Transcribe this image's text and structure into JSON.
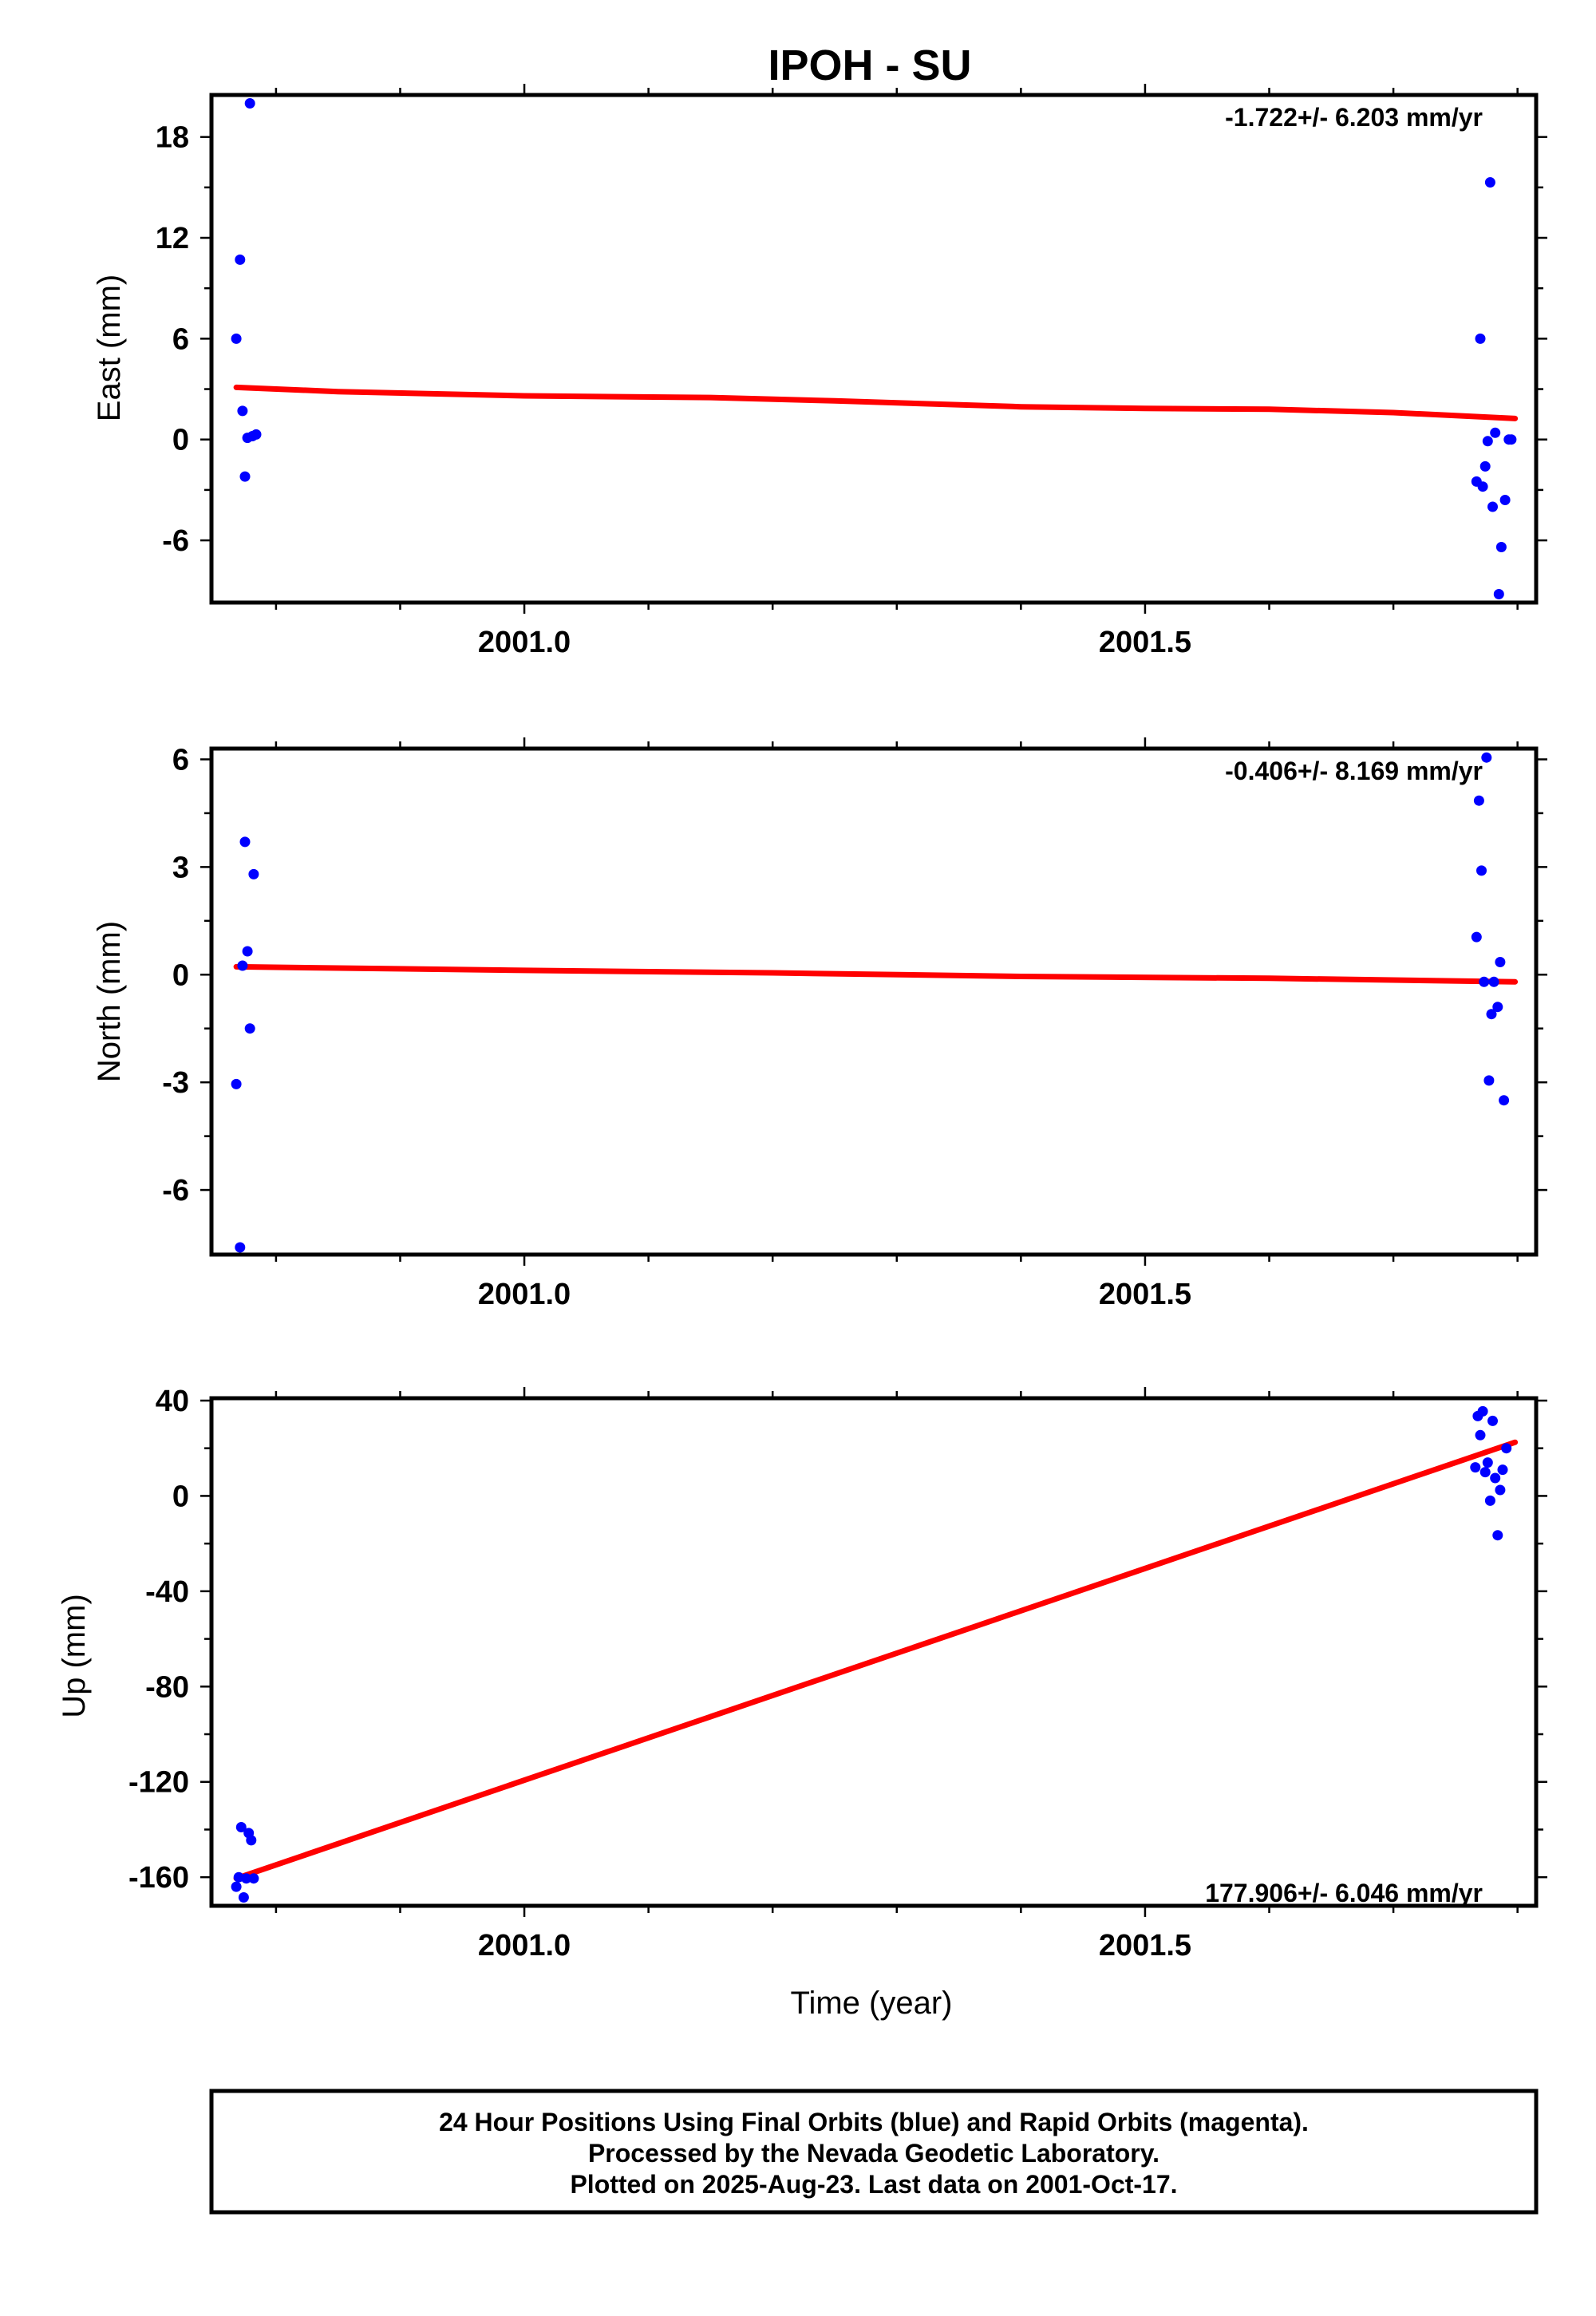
{
  "title": "IPOH - SU",
  "xlabel": "Time (year)",
  "footer": [
    "24 Hour Positions Using Final Orbits (blue) and Rapid Orbits (magenta).",
    "Processed by the Nevada Geodetic Laboratory.",
    "Plotted on 2025-Aug-23. Last data on 2001-Oct-17."
  ],
  "colors": {
    "final_orbits": "#0000ff",
    "trend": "#ff0000"
  },
  "chart_data": [
    {
      "type": "scatter",
      "name": "east",
      "ylabel": "East (mm)",
      "rate_label": "-1.722+/- 6.203 mm/yr",
      "rate_position": "top-right",
      "xlim": [
        2000.748,
        2001.815
      ],
      "ylim": [
        -9.7,
        20.5
      ],
      "x_ticks": [
        2001.0,
        2001.5
      ],
      "x_tick_labels": [
        "2001.0",
        "2001.5"
      ],
      "y_ticks": [
        18,
        12,
        6,
        0,
        -6
      ],
      "y_tick_labels": [
        "18",
        "12",
        "6",
        "0",
        "-6"
      ],
      "y_minor_ticks": [
        15,
        9,
        3,
        -3
      ],
      "trend": {
        "x": [
          2000.768,
          2000.85,
          2001.0,
          2001.15,
          2001.25,
          2001.4,
          2001.5,
          2001.6,
          2001.7,
          2001.798
        ],
        "y": [
          3.1,
          2.85,
          2.6,
          2.5,
          2.3,
          1.95,
          1.85,
          1.8,
          1.6,
          1.25
        ]
      },
      "points": {
        "x": [
          2000.768,
          2000.771,
          2000.773,
          2000.775,
          2000.777,
          2000.779,
          2000.781,
          2000.784,
          2001.767,
          2001.77,
          2001.772,
          2001.774,
          2001.776,
          2001.778,
          2001.78,
          2001.782,
          2001.785,
          2001.787,
          2001.79,
          2001.793,
          2001.795
        ],
        "y": [
          6.0,
          10.7,
          1.7,
          -2.2,
          0.1,
          20.0,
          0.2,
          0.3,
          -2.5,
          6.0,
          -2.8,
          -1.6,
          -0.1,
          15.3,
          -4.0,
          0.4,
          -9.2,
          -6.4,
          -3.6,
          0.0,
          0.0
        ]
      }
    },
    {
      "type": "scatter",
      "name": "north",
      "ylabel": "North (mm)",
      "rate_label": "-0.406+/- 8.169 mm/yr",
      "rate_position": "top-right",
      "xlim": [
        2000.748,
        2001.815
      ],
      "ylim": [
        -7.8,
        6.3
      ],
      "x_ticks": [
        2001.0,
        2001.5
      ],
      "x_tick_labels": [
        "2001.0",
        "2001.5"
      ],
      "y_ticks": [
        6,
        3,
        0,
        -3,
        -6
      ],
      "y_tick_labels": [
        "6",
        "3",
        "0",
        "-3",
        "-6"
      ],
      "y_minor_ticks": [
        4.5,
        1.5,
        -1.5,
        -4.5
      ],
      "trend": {
        "x": [
          2000.768,
          2001.0,
          2001.2,
          2001.4,
          2001.6,
          2001.798
        ],
        "y": [
          0.22,
          0.12,
          0.05,
          -0.05,
          -0.1,
          -0.2
        ]
      },
      "points": {
        "x": [
          2000.768,
          2000.771,
          2000.773,
          2000.775,
          2000.777,
          2000.779,
          2000.782,
          2001.767,
          2001.769,
          2001.771,
          2001.773,
          2001.775,
          2001.777,
          2001.779,
          2001.781,
          2001.784,
          2001.786,
          2001.789
        ],
        "y": [
          -3.05,
          -7.6,
          0.25,
          3.7,
          0.65,
          -1.5,
          2.8,
          1.05,
          4.85,
          2.9,
          -0.2,
          6.05,
          -2.95,
          -1.1,
          -0.2,
          -0.9,
          0.35,
          -3.5
        ]
      }
    },
    {
      "type": "scatter",
      "name": "up",
      "ylabel": "Up (mm)",
      "rate_label": "177.906+/- 6.046 mm/yr",
      "rate_position": "bottom-right",
      "xlim": [
        2000.748,
        2001.815
      ],
      "ylim": [
        -172,
        41
      ],
      "x_ticks": [
        2001.0,
        2001.5
      ],
      "x_tick_labels": [
        "2001.0",
        "2001.5"
      ],
      "y_ticks": [
        40,
        0,
        -40,
        -80,
        -120,
        -160
      ],
      "y_tick_labels": [
        "40",
        "0",
        "-40",
        "-80",
        "-120",
        "-160"
      ],
      "y_minor_ticks": [
        20,
        -20,
        -60,
        -100,
        -140
      ],
      "trend": {
        "x": [
          2000.768,
          2001.798
        ],
        "y": [
          -160.5,
          22.5
        ]
      },
      "points": {
        "x": [
          2000.768,
          2000.77,
          2000.772,
          2000.774,
          2000.776,
          2000.778,
          2000.78,
          2000.782,
          2001.766,
          2001.768,
          2001.77,
          2001.772,
          2001.774,
          2001.776,
          2001.778,
          2001.78,
          2001.782,
          2001.784,
          2001.786,
          2001.788,
          2001.791
        ],
        "y": [
          -164.0,
          -160.0,
          -139.0,
          -168.5,
          -160.5,
          -141.5,
          -144.5,
          -160.5,
          12.0,
          33.5,
          25.5,
          35.5,
          10.0,
          14.0,
          -2.0,
          31.5,
          7.5,
          -16.5,
          2.5,
          11.0,
          20.0
        ]
      }
    }
  ]
}
